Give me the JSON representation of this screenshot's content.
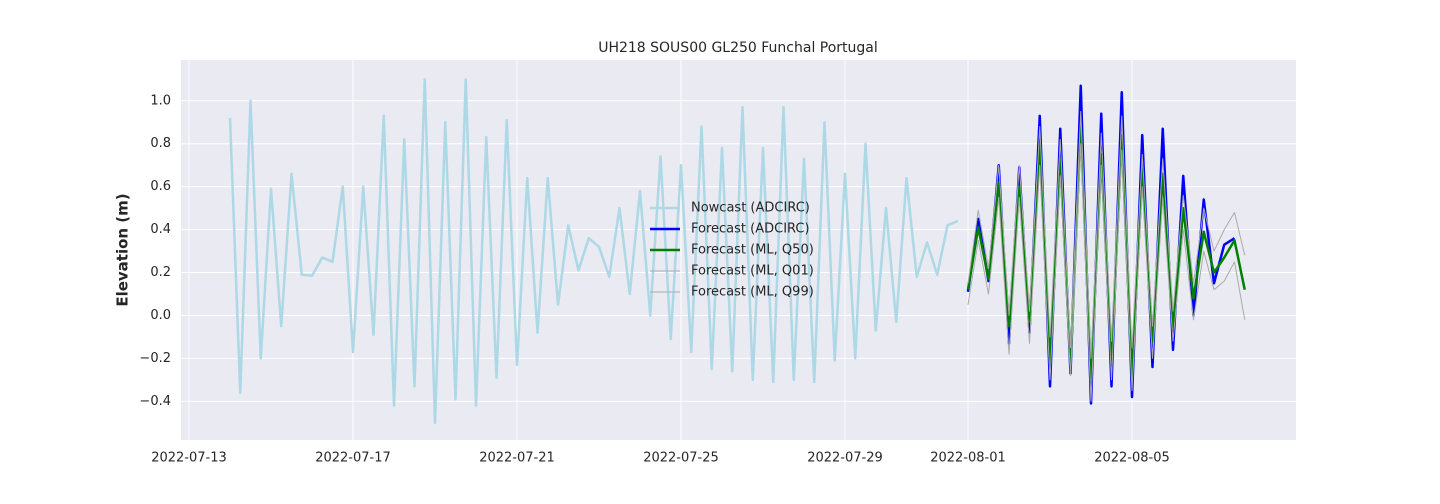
{
  "chart_data": {
    "type": "line",
    "title": "UH218 SOUS00 GL250 Funchal Portugal",
    "y_label": "Elevation (m)",
    "grid": true,
    "legend": "center",
    "xlim": [
      "2022-07-12T19:19",
      "2022-08-09T00:00"
    ],
    "xticks": [
      "2022-07-13",
      "2022-07-17",
      "2022-07-21",
      "2022-07-25",
      "2022-07-29",
      "2022-08-01",
      "2022-08-05"
    ],
    "ylim": [
      -0.58,
      1.19
    ],
    "yticks": [
      {
        "value": -0.4,
        "label": "−0.4"
      },
      {
        "value": -0.2,
        "label": "−0.2"
      },
      {
        "value": 0,
        "label": "0.0"
      },
      {
        "value": 0.2,
        "label": "0.2"
      },
      {
        "value": 0.4,
        "label": "0.4"
      },
      {
        "value": 0.6,
        "label": "0.6"
      },
      {
        "value": 0.8,
        "label": "0.8"
      },
      {
        "value": 1,
        "label": "1.0"
      }
    ],
    "series": [
      {
        "name": "Nowcast (ADCIRC)",
        "color": "#add8e6",
        "linewidth": 2.5,
        "x": [
          "2022-07-14T00:00",
          "2022-07-14T06:00",
          "2022-07-14T12:00",
          "2022-07-14T18:00",
          "2022-07-15T00:00",
          "2022-07-15T06:00",
          "2022-07-15T12:00",
          "2022-07-15T18:00",
          "2022-07-16T00:00",
          "2022-07-16T06:00",
          "2022-07-16T12:00",
          "2022-07-16T18:00",
          "2022-07-17T00:00",
          "2022-07-17T06:00",
          "2022-07-17T12:00",
          "2022-07-17T18:00",
          "2022-07-18T00:00",
          "2022-07-18T06:00",
          "2022-07-18T12:00",
          "2022-07-18T18:00",
          "2022-07-19T00:00",
          "2022-07-19T06:00",
          "2022-07-19T12:00",
          "2022-07-19T18:00",
          "2022-07-20T00:00",
          "2022-07-20T06:00",
          "2022-07-20T12:00",
          "2022-07-20T18:00",
          "2022-07-21T00:00",
          "2022-07-21T06:00",
          "2022-07-21T12:00",
          "2022-07-21T18:00",
          "2022-07-22T00:00",
          "2022-07-22T06:00",
          "2022-07-22T12:00",
          "2022-07-22T18:00",
          "2022-07-23T00:00",
          "2022-07-23T06:00",
          "2022-07-23T12:00",
          "2022-07-23T18:00",
          "2022-07-24T00:00",
          "2022-07-24T06:00",
          "2022-07-24T12:00",
          "2022-07-24T18:00",
          "2022-07-25T00:00",
          "2022-07-25T06:00",
          "2022-07-25T12:00",
          "2022-07-25T18:00",
          "2022-07-26T00:00",
          "2022-07-26T06:00",
          "2022-07-26T12:00",
          "2022-07-26T18:00",
          "2022-07-27T00:00",
          "2022-07-27T06:00",
          "2022-07-27T12:00",
          "2022-07-27T18:00",
          "2022-07-28T00:00",
          "2022-07-28T06:00",
          "2022-07-28T12:00",
          "2022-07-28T18:00",
          "2022-07-29T00:00",
          "2022-07-29T06:00",
          "2022-07-29T12:00",
          "2022-07-29T18:00",
          "2022-07-30T00:00",
          "2022-07-30T06:00",
          "2022-07-30T12:00",
          "2022-07-30T18:00",
          "2022-07-31T00:00",
          "2022-07-31T06:00",
          "2022-07-31T12:00",
          "2022-07-31T18:00"
        ],
        "values": [
          0.92,
          -0.36,
          1.0,
          -0.2,
          0.59,
          -0.05,
          0.66,
          0.19,
          0.185,
          0.27,
          0.25,
          0.6,
          -0.17,
          0.6,
          -0.09,
          0.93,
          -0.42,
          0.82,
          -0.33,
          1.1,
          -0.5,
          0.9,
          -0.39,
          1.1,
          -0.42,
          0.83,
          -0.29,
          0.91,
          -0.23,
          0.64,
          -0.08,
          0.64,
          0.05,
          0.42,
          0.21,
          0.36,
          0.32,
          0.18,
          0.5,
          0.1,
          0.58,
          0.0,
          0.74,
          -0.11,
          0.7,
          -0.17,
          0.88,
          -0.25,
          0.78,
          -0.26,
          0.97,
          -0.3,
          0.78,
          -0.31,
          0.97,
          -0.3,
          0.73,
          -0.31,
          0.9,
          -0.21,
          0.66,
          -0.2,
          0.8,
          -0.07,
          0.5,
          -0.03,
          0.64,
          0.18,
          0.34,
          0.19,
          0.42,
          0.44
        ]
      },
      {
        "name": "Forecast (ADCIRC)",
        "color": "#0000ff",
        "linewidth": 2.5,
        "x": [
          "2022-08-01T00:00",
          "2022-08-01T06:00",
          "2022-08-01T12:00",
          "2022-08-01T18:00",
          "2022-08-02T00:00",
          "2022-08-02T06:00",
          "2022-08-02T12:00",
          "2022-08-02T18:00",
          "2022-08-03T00:00",
          "2022-08-03T06:00",
          "2022-08-03T12:00",
          "2022-08-03T18:00",
          "2022-08-04T00:00",
          "2022-08-04T06:00",
          "2022-08-04T12:00",
          "2022-08-04T18:00",
          "2022-08-05T00:00",
          "2022-08-05T06:00",
          "2022-08-05T12:00",
          "2022-08-05T18:00",
          "2022-08-06T00:00",
          "2022-08-06T06:00",
          "2022-08-06T12:00",
          "2022-08-06T18:00",
          "2022-08-07T00:00",
          "2022-08-07T06:00",
          "2022-08-07T12:00"
        ],
        "values": [
          0.11,
          0.45,
          0.16,
          0.7,
          -0.13,
          0.69,
          -0.08,
          0.93,
          -0.33,
          0.87,
          -0.27,
          1.07,
          -0.41,
          0.94,
          -0.33,
          1.04,
          -0.38,
          0.84,
          -0.24,
          0.87,
          -0.16,
          0.65,
          0.0,
          0.54,
          0.15,
          0.33,
          0.36
        ]
      },
      {
        "name": "Forecast (ML, Q50)",
        "color": "#008000",
        "linewidth": 2.5,
        "x": [
          "2022-08-01T00:00",
          "2022-08-01T06:00",
          "2022-08-01T12:00",
          "2022-08-01T18:00",
          "2022-08-02T00:00",
          "2022-08-02T06:00",
          "2022-08-02T12:00",
          "2022-08-02T18:00",
          "2022-08-03T00:00",
          "2022-08-03T06:00",
          "2022-08-03T12:00",
          "2022-08-03T18:00",
          "2022-08-04T00:00",
          "2022-08-04T06:00",
          "2022-08-04T12:00",
          "2022-08-04T18:00",
          "2022-08-05T00:00",
          "2022-08-05T06:00",
          "2022-08-05T12:00",
          "2022-08-05T18:00",
          "2022-08-06T00:00",
          "2022-08-06T06:00",
          "2022-08-06T12:00",
          "2022-08-06T18:00",
          "2022-08-07T00:00",
          "2022-08-07T06:00",
          "2022-08-07T12:00",
          "2022-08-07T18:00"
        ],
        "values": [
          0.12,
          0.41,
          0.17,
          0.62,
          -0.05,
          0.6,
          -0.03,
          0.8,
          -0.22,
          0.73,
          -0.23,
          0.88,
          -0.3,
          0.75,
          -0.22,
          0.84,
          -0.29,
          0.68,
          -0.13,
          0.66,
          -0.06,
          0.5,
          0.08,
          0.39,
          0.2,
          0.27,
          0.35,
          0.12
        ]
      },
      {
        "name": "Forecast (ML, Q01)",
        "color": "#aaaaaa",
        "linewidth": 1,
        "x": [
          "2022-08-01T00:00",
          "2022-08-01T06:00",
          "2022-08-01T12:00",
          "2022-08-01T18:00",
          "2022-08-02T00:00",
          "2022-08-02T06:00",
          "2022-08-02T12:00",
          "2022-08-02T18:00",
          "2022-08-03T00:00",
          "2022-08-03T06:00",
          "2022-08-03T12:00",
          "2022-08-03T18:00",
          "2022-08-04T00:00",
          "2022-08-04T06:00",
          "2022-08-04T12:00",
          "2022-08-04T18:00",
          "2022-08-05T00:00",
          "2022-08-05T06:00",
          "2022-08-05T12:00",
          "2022-08-05T18:00",
          "2022-08-06T00:00",
          "2022-08-06T06:00",
          "2022-08-06T12:00",
          "2022-08-06T18:00",
          "2022-08-07T00:00",
          "2022-08-07T06:00",
          "2022-08-07T12:00",
          "2022-08-07T18:00"
        ],
        "values": [
          0.05,
          0.35,
          0.1,
          0.55,
          -0.18,
          0.55,
          -0.13,
          0.7,
          -0.3,
          0.65,
          -0.28,
          0.8,
          -0.4,
          0.7,
          -0.3,
          0.77,
          -0.35,
          0.6,
          -0.2,
          0.55,
          -0.12,
          0.4,
          -0.02,
          0.3,
          0.12,
          0.16,
          0.25,
          -0.02
        ]
      },
      {
        "name": "Forecast (ML, Q99)",
        "color": "#aaaaaa",
        "linewidth": 1,
        "x": [
          "2022-08-01T00:00",
          "2022-08-01T06:00",
          "2022-08-01T12:00",
          "2022-08-01T18:00",
          "2022-08-02T00:00",
          "2022-08-02T06:00",
          "2022-08-02T12:00",
          "2022-08-02T18:00",
          "2022-08-03T00:00",
          "2022-08-03T06:00",
          "2022-08-03T12:00",
          "2022-08-03T18:00",
          "2022-08-04T00:00",
          "2022-08-04T06:00",
          "2022-08-04T12:00",
          "2022-08-04T18:00",
          "2022-08-05T00:00",
          "2022-08-05T06:00",
          "2022-08-05T12:00",
          "2022-08-05T18:00",
          "2022-08-06T00:00",
          "2022-08-06T06:00",
          "2022-08-06T12:00",
          "2022-08-06T18:00",
          "2022-08-07T00:00",
          "2022-08-07T06:00",
          "2022-08-07T12:00",
          "2022-08-07T18:00"
        ],
        "values": [
          0.15,
          0.49,
          0.22,
          0.7,
          0.0,
          0.7,
          0.02,
          0.88,
          -0.1,
          0.82,
          -0.15,
          0.95,
          -0.2,
          0.85,
          -0.12,
          0.93,
          -0.15,
          0.75,
          -0.05,
          0.73,
          0.02,
          0.56,
          0.15,
          0.5,
          0.3,
          0.4,
          0.48,
          0.28
        ]
      }
    ]
  }
}
